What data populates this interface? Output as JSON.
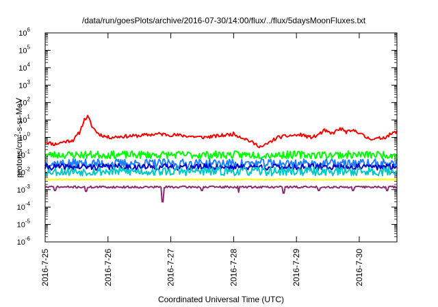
{
  "chart_data": {
    "type": "line",
    "title": "/data/run/goesPlots/archive/2016-07-30/14:00/flux/../flux/5daysMoonFluxes.txt",
    "xlabel": "Coordinated Universal Time (UTC)",
    "ylabel_main": "protons/cm",
    "ylabel_sup": "2",
    "ylabel_rest": "-s-sr-MeV",
    "yscale": "log",
    "ylim_exp": [
      -6,
      6
    ],
    "y_tick_exponents": [
      -6,
      -5,
      -4,
      -3,
      -2,
      -1,
      0,
      1,
      2,
      3,
      4,
      5,
      6
    ],
    "y_tick_base": "10",
    "x_tick_labels": [
      "2016-7-25",
      "2016-7-26",
      "2016-7-27",
      "2016-7-28",
      "2016-7-29",
      "2016-7-30"
    ],
    "x_range_days": [
      0,
      5.6
    ],
    "grid": false,
    "legend": "none",
    "series": [
      {
        "color": "#ff0000",
        "seed": 11,
        "jitter": 0.1,
        "keypoints": [
          [
            0.0,
            -0.25
          ],
          [
            0.05,
            -0.3
          ],
          [
            0.15,
            -0.4
          ],
          [
            0.3,
            -0.25
          ],
          [
            0.45,
            -0.15
          ],
          [
            0.55,
            0.3
          ],
          [
            0.62,
            1.0
          ],
          [
            0.68,
            1.2
          ],
          [
            0.75,
            0.6
          ],
          [
            0.85,
            0.2
          ],
          [
            1.0,
            0.0
          ],
          [
            1.2,
            0.05
          ],
          [
            1.5,
            0.1
          ],
          [
            1.8,
            0.2
          ],
          [
            2.0,
            0.15
          ],
          [
            2.2,
            0.1
          ],
          [
            2.5,
            0.0
          ],
          [
            2.8,
            0.1
          ],
          [
            3.0,
            0.2
          ],
          [
            3.2,
            -0.1
          ],
          [
            3.35,
            -0.4
          ],
          [
            3.45,
            -0.55
          ],
          [
            3.5,
            -0.45
          ],
          [
            3.7,
            0.0
          ],
          [
            3.9,
            0.1
          ],
          [
            4.1,
            0.15
          ],
          [
            4.2,
            0.0
          ],
          [
            4.3,
            0.05
          ],
          [
            4.45,
            0.4
          ],
          [
            4.55,
            0.2
          ],
          [
            4.7,
            0.5
          ],
          [
            4.8,
            0.3
          ],
          [
            4.95,
            0.4
          ],
          [
            5.1,
            0.0
          ],
          [
            5.25,
            -0.1
          ],
          [
            5.4,
            0.0
          ],
          [
            5.6,
            0.35
          ]
        ]
      },
      {
        "color": "#00ff00",
        "seed": 23,
        "jitter": 0.22,
        "keypoints": [
          [
            0.0,
            -1.0
          ],
          [
            5.6,
            -1.0
          ]
        ]
      },
      {
        "color": "#1e7fff",
        "seed": 37,
        "jitter": 0.26,
        "keypoints": [
          [
            0.0,
            -1.5
          ],
          [
            5.6,
            -1.5
          ]
        ]
      },
      {
        "color": "#0000cc",
        "seed": 41,
        "jitter": 0.18,
        "keypoints": [
          [
            0.0,
            -1.7
          ],
          [
            5.6,
            -1.7
          ]
        ]
      },
      {
        "color": "#00c8c8",
        "seed": 53,
        "jitter": 0.25,
        "keypoints": [
          [
            0.0,
            -1.95
          ],
          [
            5.6,
            -1.95
          ]
        ]
      },
      {
        "color": "#ffff00",
        "seed": 61,
        "jitter": 0.03,
        "keypoints": [
          [
            0.0,
            -2.42
          ],
          [
            5.6,
            -2.42
          ]
        ]
      },
      {
        "color": "#8b2a6e",
        "seed": 71,
        "jitter": 0.06,
        "keypoints": [
          [
            0.0,
            -2.85
          ],
          [
            5.6,
            -2.85
          ]
        ],
        "dips": [
          [
            0.15,
            -3.05
          ],
          [
            0.65,
            -3.1
          ],
          [
            1.87,
            -3.7
          ],
          [
            2.5,
            -3.05
          ],
          [
            3.08,
            -3.15
          ],
          [
            3.8,
            -3.2
          ],
          [
            4.35,
            -3.05
          ],
          [
            4.9,
            -3.05
          ],
          [
            5.45,
            -3.05
          ]
        ]
      }
    ]
  }
}
